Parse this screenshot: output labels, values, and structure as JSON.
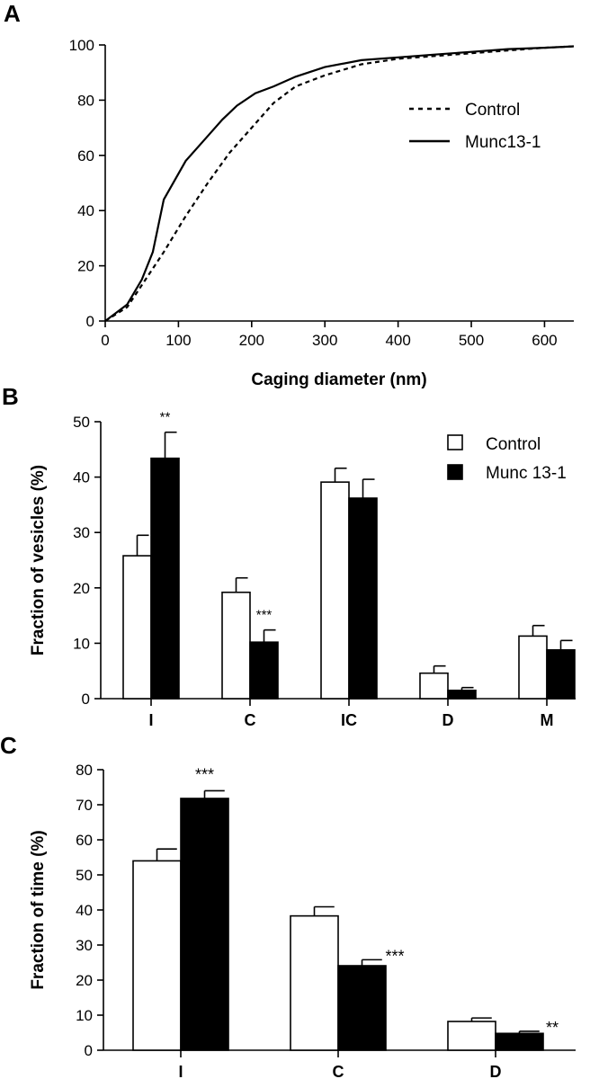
{
  "chart_data": [
    {
      "panel": "A",
      "type": "line",
      "xlabel": "Caging diameter (nm)",
      "ylabel": "",
      "xlim": [
        0,
        640
      ],
      "ylim": [
        0,
        100
      ],
      "xticks": [
        "0",
        "100",
        "200",
        "300",
        "400",
        "500",
        "600"
      ],
      "yticks": [
        "0",
        "20",
        "40",
        "60",
        "80",
        "100"
      ],
      "legend_position": "right",
      "series": [
        {
          "name": "Control",
          "style": "dashed",
          "points": [
            [
              0,
              0
            ],
            [
              30,
              5
            ],
            [
              55,
              15
            ],
            [
              80,
              25
            ],
            [
              110,
              38
            ],
            [
              140,
              50
            ],
            [
              170,
              61
            ],
            [
              200,
              70
            ],
            [
              230,
              79
            ],
            [
              260,
              85
            ],
            [
              300,
              89
            ],
            [
              350,
              93
            ],
            [
              400,
              95
            ],
            [
              450,
              96
            ],
            [
              500,
              97
            ],
            [
              550,
              98
            ],
            [
              600,
              99
            ],
            [
              640,
              99.5
            ]
          ]
        },
        {
          "name": "Munc13-1",
          "style": "solid",
          "points": [
            [
              0,
              0
            ],
            [
              30,
              6
            ],
            [
              50,
              15
            ],
            [
              65,
              25
            ],
            [
              80,
              44
            ],
            [
              110,
              58
            ],
            [
              140,
              67
            ],
            [
              160,
              73
            ],
            [
              180,
              78
            ],
            [
              205,
              82.5
            ],
            [
              230,
              85
            ],
            [
              260,
              88.5
            ],
            [
              300,
              92
            ],
            [
              350,
              94.5
            ],
            [
              400,
              95.5
            ],
            [
              450,
              96.5
            ],
            [
              500,
              97.5
            ],
            [
              550,
              98.5
            ],
            [
              600,
              99
            ],
            [
              640,
              99.5
            ]
          ]
        }
      ]
    },
    {
      "panel": "B",
      "type": "bar",
      "xlabel": "",
      "ylabel": "Fraction of vesicles (%)",
      "ylim": [
        0,
        50
      ],
      "yticks": [
        "0",
        "10",
        "20",
        "30",
        "40",
        "50"
      ],
      "categories": [
        "I",
        "C",
        "IC",
        "D",
        "M"
      ],
      "legend_position": "top-right",
      "series": [
        {
          "name": "Control",
          "color": "#ffffff",
          "values": [
            25.8,
            19.2,
            39.1,
            4.6,
            11.3
          ],
          "errors": [
            3.7,
            2.6,
            2.5,
            1.3,
            1.9
          ]
        },
        {
          "name": "Munc 13-1",
          "color": "#000000",
          "values": [
            43.4,
            10.2,
            36.2,
            1.5,
            8.8
          ],
          "errors": [
            4.7,
            2.2,
            3.4,
            0.5,
            1.7
          ]
        }
      ],
      "annotations": [
        {
          "category": "I",
          "series": 1,
          "text": "**"
        },
        {
          "category": "C",
          "series": 1,
          "text": "***"
        }
      ]
    },
    {
      "panel": "C",
      "type": "bar",
      "xlabel": "",
      "ylabel": "Fraction of time (%)",
      "ylim": [
        0,
        80
      ],
      "yticks": [
        "0",
        "10",
        "20",
        "30",
        "40",
        "50",
        "60",
        "70",
        "80"
      ],
      "categories": [
        "I",
        "C",
        "D"
      ],
      "series": [
        {
          "name": "Control",
          "color": "#ffffff",
          "values": [
            54,
            38.3,
            8.2
          ],
          "errors": [
            3.4,
            2.6,
            1.0
          ]
        },
        {
          "name": "Munc 13-1",
          "color": "#000000",
          "values": [
            71.8,
            24.1,
            4.8
          ],
          "errors": [
            2.2,
            1.7,
            0.6
          ]
        }
      ],
      "annotations": [
        {
          "category": "I",
          "series": 1,
          "text": "***"
        },
        {
          "category": "C",
          "series": 1,
          "text": "***"
        },
        {
          "category": "D",
          "series": 1,
          "text": "**"
        }
      ]
    }
  ]
}
